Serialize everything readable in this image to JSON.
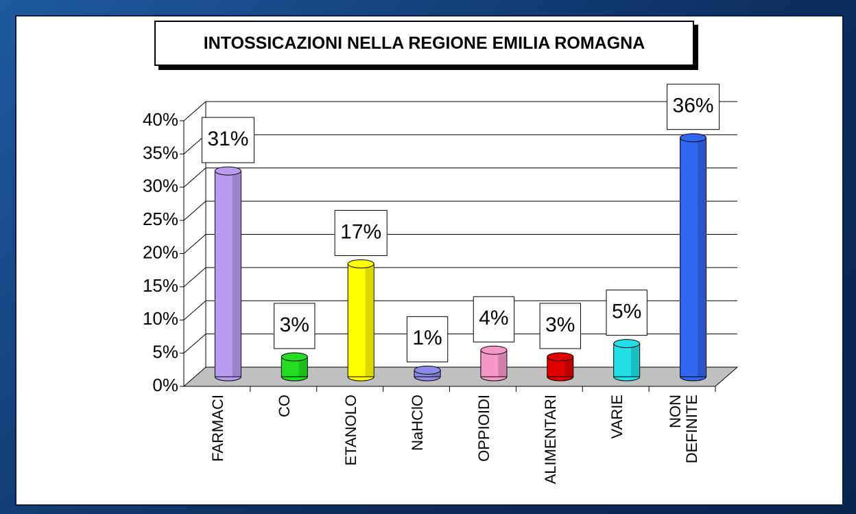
{
  "chart_data": {
    "type": "bar3d",
    "title": "INTOSSICAZIONI NELLA REGIONE EMILIA ROMAGNA",
    "categories": [
      "FARMACI",
      "CO",
      "ETANOLO",
      "NaHClO",
      "OPPIOIDI",
      "ALIMENTARI",
      "VARIE",
      "NON DEFINITE"
    ],
    "values": [
      31,
      3,
      17,
      1,
      4,
      3,
      5,
      36
    ],
    "value_labels": [
      "31%",
      "3%",
      "17%",
      "1%",
      "4%",
      "3%",
      "5%",
      "36%"
    ],
    "colors": [
      "#b79cf0",
      "#22dd22",
      "#ffff00",
      "#8c8ce8",
      "#f598c8",
      "#e00000",
      "#22e0e8",
      "#3366ee"
    ],
    "ylim": [
      0,
      40
    ],
    "yticks": [
      {
        "value": 0,
        "label": "0%"
      },
      {
        "value": 5,
        "label": "5%"
      },
      {
        "value": 10,
        "label": "10%"
      },
      {
        "value": 15,
        "label": "15%"
      },
      {
        "value": 20,
        "label": "20%"
      },
      {
        "value": 25,
        "label": "25%"
      },
      {
        "value": 30,
        "label": "30%"
      },
      {
        "value": 35,
        "label": "35%"
      },
      {
        "value": 40,
        "label": "40%"
      }
    ],
    "grid": true
  }
}
